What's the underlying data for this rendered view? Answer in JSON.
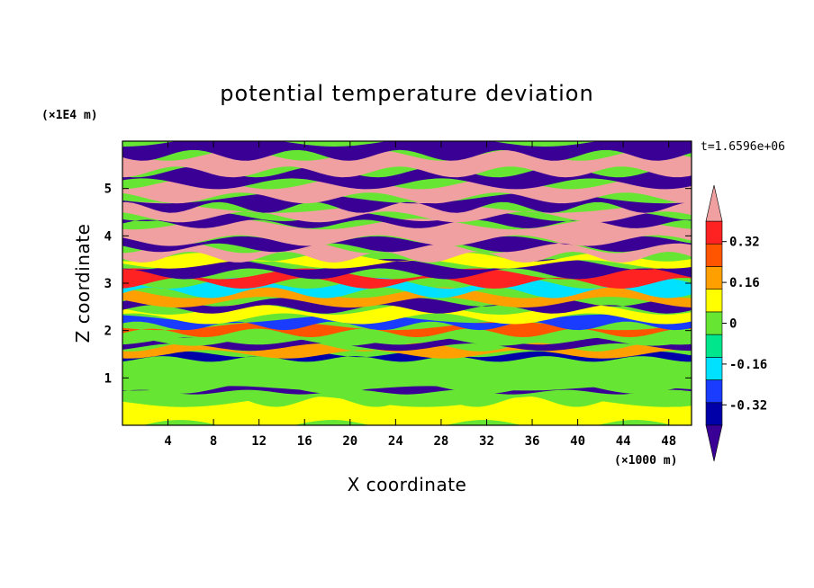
{
  "chart_data": {
    "type": "heatmap",
    "title": "potential temperature deviation",
    "xlabel": "X coordinate",
    "ylabel": "Z coordinate",
    "x_unit": "(×1000 m)",
    "y_unit": "(×1E4 m)",
    "time_label": "t=1.6596e+06",
    "xlim": [
      0,
      50
    ],
    "ylim": [
      0,
      6
    ],
    "x_ticks": [
      4,
      8,
      12,
      16,
      20,
      24,
      28,
      32,
      36,
      40,
      44,
      48
    ],
    "y_ticks": [
      1,
      2,
      3,
      4,
      5
    ],
    "colorbar": {
      "levels": [
        -0.4,
        -0.32,
        -0.24,
        -0.16,
        -0.08,
        0,
        0.08,
        0.16,
        0.24,
        0.32,
        0.4
      ],
      "tick_labels": [
        "0.32",
        "0.16",
        "0",
        "-0.16",
        "-0.32"
      ],
      "tick_values": [
        0.32,
        0.16,
        0,
        -0.16,
        -0.32
      ],
      "colors": [
        "#3a0096",
        "#0000a8",
        "#1a3cff",
        "#00e0ff",
        "#00e68c",
        "#66e633",
        "#ffff00",
        "#ffa000",
        "#ff5500",
        "#ff2222",
        "#f0a0a0"
      ],
      "extend": "both"
    },
    "bands": [
      {
        "z": [
          0.0,
          0.5
        ],
        "value": 0.08
      },
      {
        "z": [
          0.5,
          0.7
        ],
        "value": 0.04
      },
      {
        "z": [
          0.7,
          0.78
        ],
        "value": -0.34
      },
      {
        "z": [
          0.78,
          1.15
        ],
        "value": 0.02
      },
      {
        "z": [
          1.15,
          1.4
        ],
        "value": 0.0
      },
      {
        "z": [
          1.4,
          1.5
        ],
        "value": -0.3
      },
      {
        "z": [
          1.5,
          1.65
        ],
        "value": 0.2
      },
      {
        "z": [
          1.65,
          1.78
        ],
        "value": -0.38
      },
      {
        "z": [
          1.78,
          1.95
        ],
        "value": 0.05
      },
      {
        "z": [
          1.95,
          2.1
        ],
        "value": 0.3
      },
      {
        "z": [
          2.1,
          2.25
        ],
        "value": -0.2
      },
      {
        "z": [
          2.25,
          2.45
        ],
        "value": 0.1
      },
      {
        "z": [
          2.45,
          2.6
        ],
        "value": -0.38
      },
      {
        "z": [
          2.6,
          2.8
        ],
        "value": 0.22
      },
      {
        "z": [
          2.8,
          3.0
        ],
        "value": -0.1
      },
      {
        "z": [
          3.0,
          3.2
        ],
        "value": 0.35
      },
      {
        "z": [
          3.2,
          3.4
        ],
        "value": -0.42
      },
      {
        "z": [
          3.4,
          3.55
        ],
        "value": 0.15
      },
      {
        "z": [
          3.55,
          3.75
        ],
        "value": 0.42
      },
      {
        "z": [
          3.75,
          3.9
        ],
        "value": -0.36
      },
      {
        "z": [
          3.9,
          4.25
        ],
        "value": 0.44
      },
      {
        "z": [
          4.25,
          4.4
        ],
        "value": -0.42
      },
      {
        "z": [
          4.4,
          4.6
        ],
        "value": 0.44
      },
      {
        "z": [
          4.6,
          4.8
        ],
        "value": -0.44
      },
      {
        "z": [
          4.8,
          5.1
        ],
        "value": 0.44
      },
      {
        "z": [
          5.1,
          5.35
        ],
        "value": -0.44
      },
      {
        "z": [
          5.35,
          5.7
        ],
        "value": 0.44
      },
      {
        "z": [
          5.7,
          6.0
        ],
        "value": -0.44
      }
    ]
  }
}
